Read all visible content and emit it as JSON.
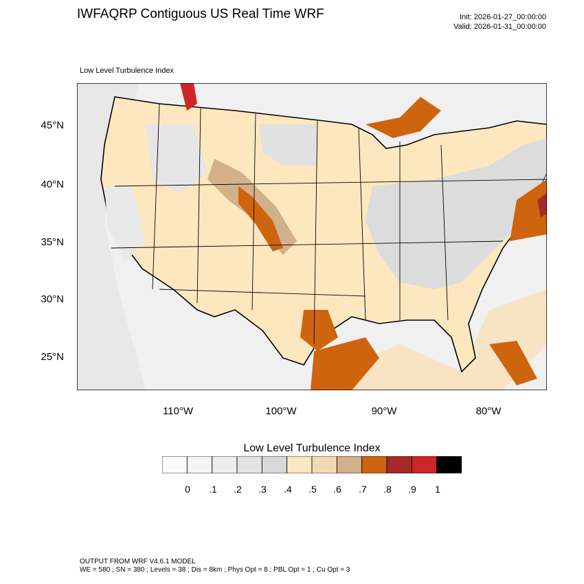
{
  "header": {
    "title": "IWFAQRP Contiguous US Real Time WRF",
    "init": "Init: 2026-01-27_00:00:00",
    "valid": "Valid: 2026-01-31_00:00:00",
    "subtitle": "Low Level Turbulence Index"
  },
  "map": {
    "lat_labels": [
      "45°N",
      "40°N",
      "35°N",
      "30°N",
      "25°N"
    ],
    "lon_labels": [
      "110°W",
      "100°W",
      "90°W",
      "80°W"
    ],
    "colors": {
      "land_light": "#fde7bf",
      "gray_light": "#e4e4e4",
      "gray_mid": "#d7d7d7",
      "tan": "#d2b08a",
      "orange": "#cf640e",
      "dark_red": "#a52a2a",
      "red": "#cd2626",
      "water": "#f2f2f2"
    }
  },
  "colorbar": {
    "title": "Low Level Turbulence Index",
    "colors": [
      "#fafafa",
      "#f4f4f4",
      "#ededed",
      "#e3e3e3",
      "#d8d8d8",
      "#fde7bf",
      "#f3d9b3",
      "#d2b08a",
      "#cf640e",
      "#a52a2a",
      "#cd2626",
      "#000000"
    ],
    "labels": [
      "0",
      ".1",
      ".2",
      ".3",
      ".4",
      ".5",
      ".6",
      ".7",
      ".8",
      ".9",
      "1"
    ]
  },
  "footer": {
    "line1": "OUTPUT FROM WRF V4.6.1 MODEL",
    "line2": "WE = 580 ; SN = 380 ; Levels = 38 ; Dis = 8km ; Phys Opt = 8 ; PBL Opt = 1 ; Cu Opt = 3"
  }
}
